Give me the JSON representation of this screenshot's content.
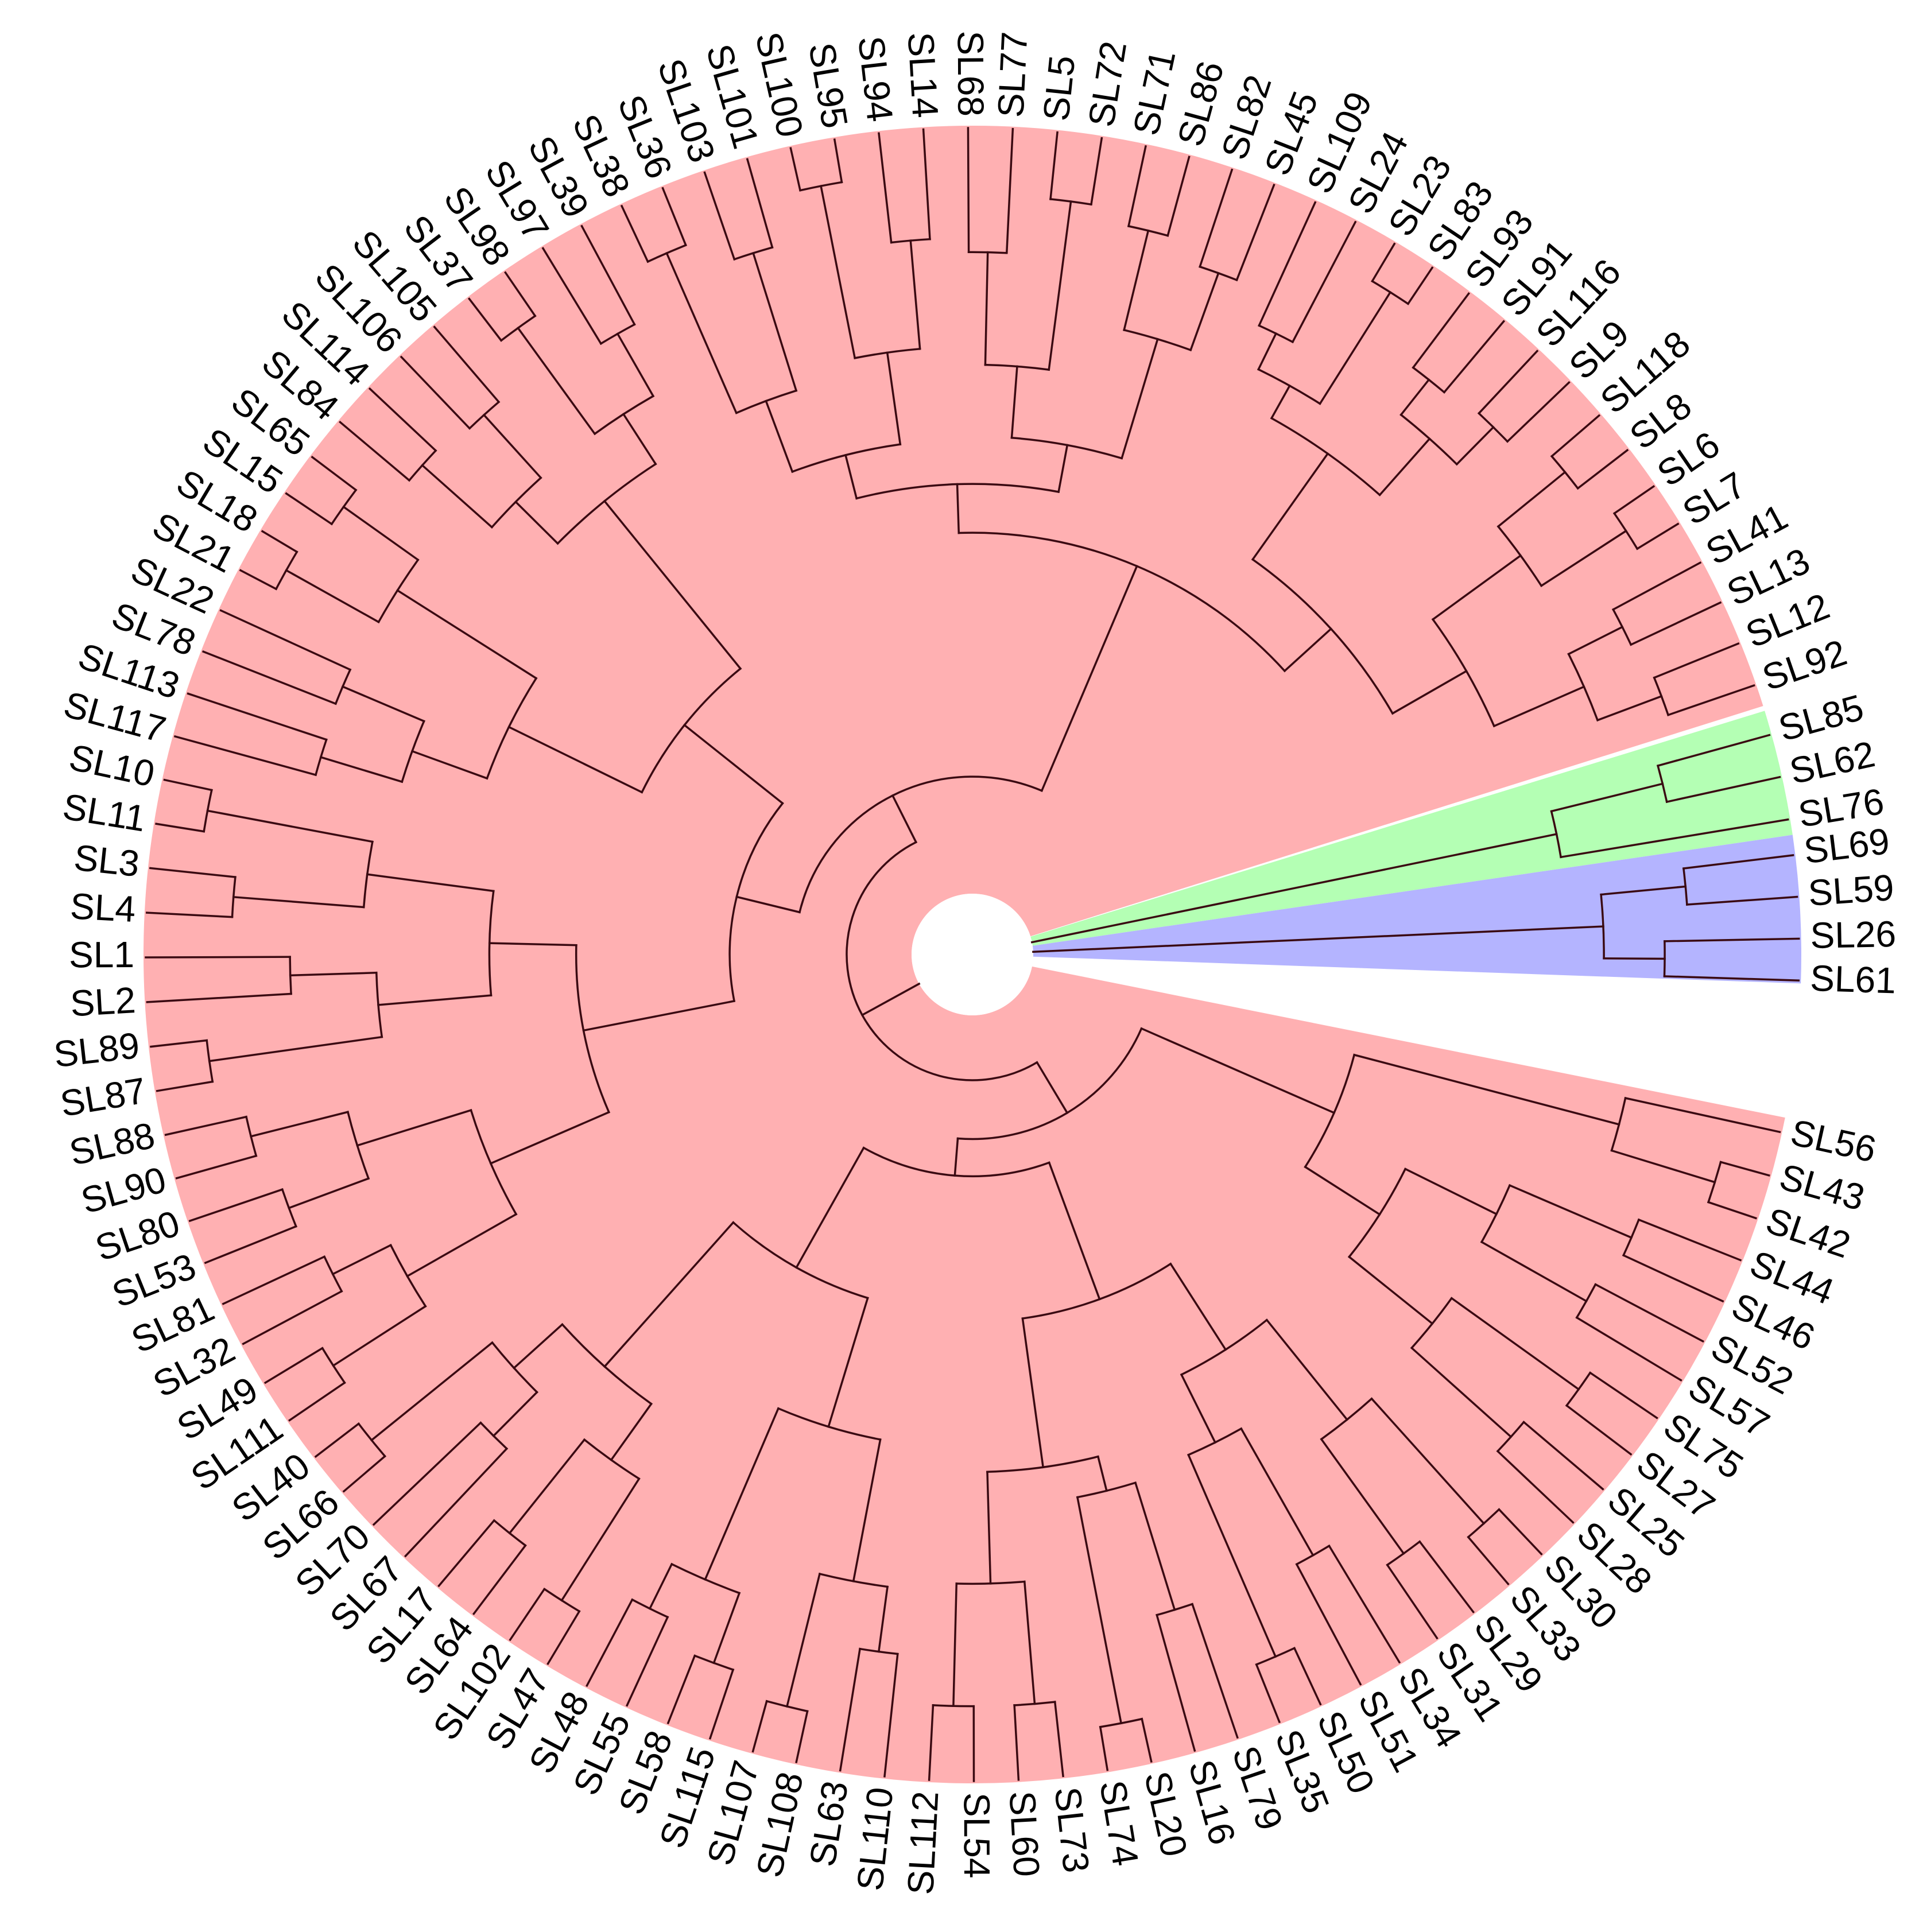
{
  "diagram": {
    "type": "circular-dendrogram",
    "clade_colors": {
      "red": "#ffb0b2",
      "green": "#b4ffb4",
      "blue": "#b4b4ff"
    },
    "branch_color": "#3a0a12",
    "red_tips_top": [
      "SL92",
      "SL12",
      "SL13",
      "SL41",
      "SL7",
      "SL6",
      "SL8",
      "SL118",
      "SL9",
      "SL116",
      "SL91",
      "SL93",
      "SL83",
      "SL23",
      "SL24",
      "SL109",
      "SL45",
      "SL82",
      "SL86",
      "SL71",
      "SL72",
      "SL5",
      "SL77",
      "SL68",
      "SL14",
      "SL94",
      "SL95",
      "SL100",
      "SL101",
      "SL103",
      "SL36",
      "SL38",
      "SL39",
      "SL97",
      "SL98",
      "SL37",
      "SL105",
      "SL106",
      "SL114",
      "SL84",
      "SL65",
      "SL15",
      "SL18",
      "SL21",
      "SL22",
      "SL78",
      "SL113",
      "SL117",
      "SL10",
      "SL11",
      "SL3",
      "SL4",
      "SL1",
      "SL2",
      "SL89",
      "SL87",
      "SL88",
      "SL90",
      "SL80",
      "SL53",
      "SL81",
      "SL32",
      "SL49",
      "SL111",
      "SL40",
      "SL66",
      "SL70",
      "SL67",
      "SL17",
      "SL64",
      "SL102",
      "SL47",
      "SL48",
      "SL55",
      "SL58",
      "SL115",
      "SL107",
      "SL108",
      "SL63",
      "SL110",
      "SL112",
      "SL54",
      "SL60",
      "SL73",
      "SL74",
      "SL20",
      "SL16",
      "SL79",
      "SL35",
      "SL50",
      "SL51",
      "SL34",
      "SL31",
      "SL29",
      "SL33",
      "SL30",
      "SL28",
      "SL25",
      "SL27",
      "SL75",
      "SL57",
      "SL52",
      "SL46",
      "SL44",
      "SL42",
      "SL43",
      "SL56"
    ],
    "green_tips": [
      "SL85",
      "SL62",
      "SL76"
    ],
    "blue_tips": [
      "SL69",
      "SL59",
      "SL26",
      "SL61"
    ]
  }
}
